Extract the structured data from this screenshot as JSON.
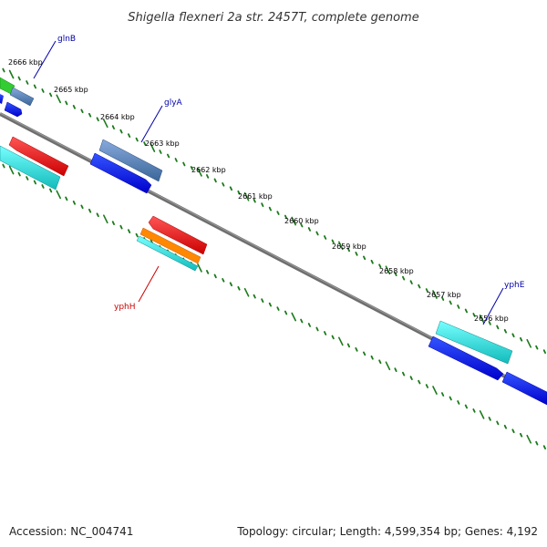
{
  "title": "Shigella flexneri 2a str. 2457T, complete genome",
  "footer": {
    "accession": "Accession: NC_004741",
    "summary": "Topology: circular; Length: 4,599,354 bp; Genes: 4,192"
  },
  "kbp_labels": [
    "2666 kbp",
    "2665 kbp",
    "2664 kbp",
    "2663 kbp",
    "2662 kbp",
    "2661 kbp",
    "2660 kbp",
    "2659 kbp",
    "2658 kbp",
    "2657 kbp",
    "2656 kbp"
  ],
  "gene_labels": [
    {
      "name": "glnB",
      "color": "#0000aa"
    },
    {
      "name": "glyA",
      "color": "#0000aa"
    },
    {
      "name": "yphH",
      "color": "#cc0000"
    },
    {
      "name": "yphE",
      "color": "#0000aa"
    }
  ],
  "colors": {
    "backbone": "#777777",
    "tick": "#1a7a1a",
    "red": "#ee1111",
    "cyan": "#22dddd",
    "teal": "#33bbbb",
    "blue": "#1111ee",
    "steelblue": "#5b88bb",
    "green": "#33cc33",
    "orange": "#ff8800"
  }
}
